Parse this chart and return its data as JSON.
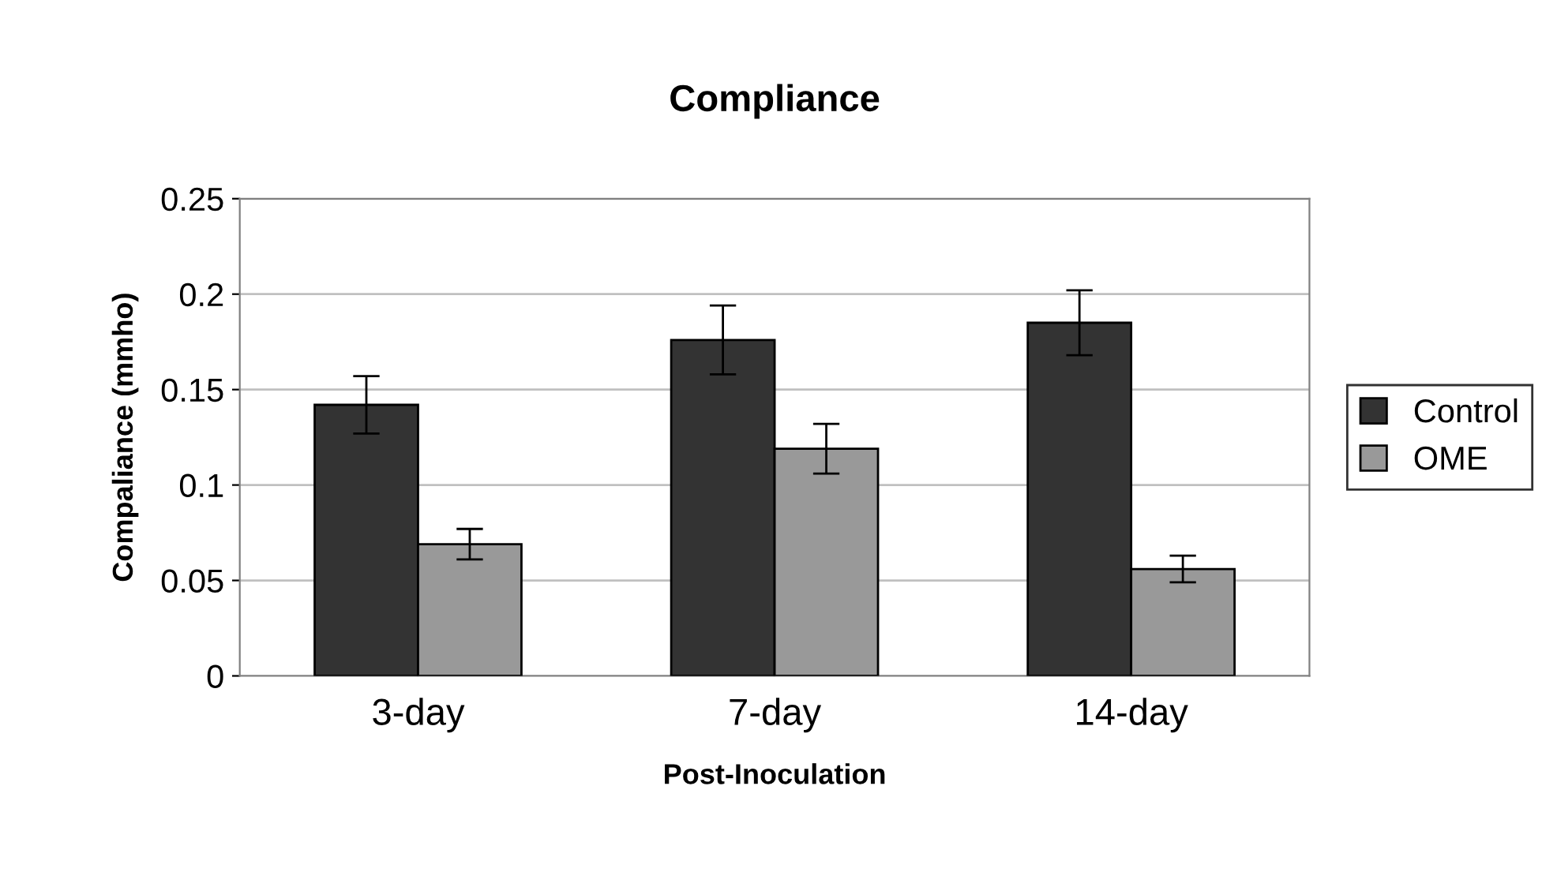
{
  "chart_data": {
    "type": "bar",
    "title": "Compliance",
    "xlabel": "Post-Inoculation",
    "ylabel": "Compaliance (mmho)",
    "categories": [
      "3-day",
      "7-day",
      "14-day"
    ],
    "series": [
      {
        "name": "Control",
        "color": "#333333",
        "values": [
          0.142,
          0.176,
          0.185
        ],
        "errors": [
          0.015,
          0.018,
          0.017
        ]
      },
      {
        "name": "OME",
        "color": "#999999",
        "values": [
          0.069,
          0.119,
          0.056
        ],
        "errors": [
          0.008,
          0.013,
          0.007
        ]
      }
    ],
    "ylim": [
      0,
      0.25
    ],
    "yticks": [
      {
        "value": 0,
        "label": "0"
      },
      0.05,
      {
        "value": 0.1,
        "label": "0.1"
      },
      0.15,
      {
        "value": 0.2,
        "label": "0.2"
      },
      0.25
    ],
    "grid": "y",
    "legend": "right"
  }
}
